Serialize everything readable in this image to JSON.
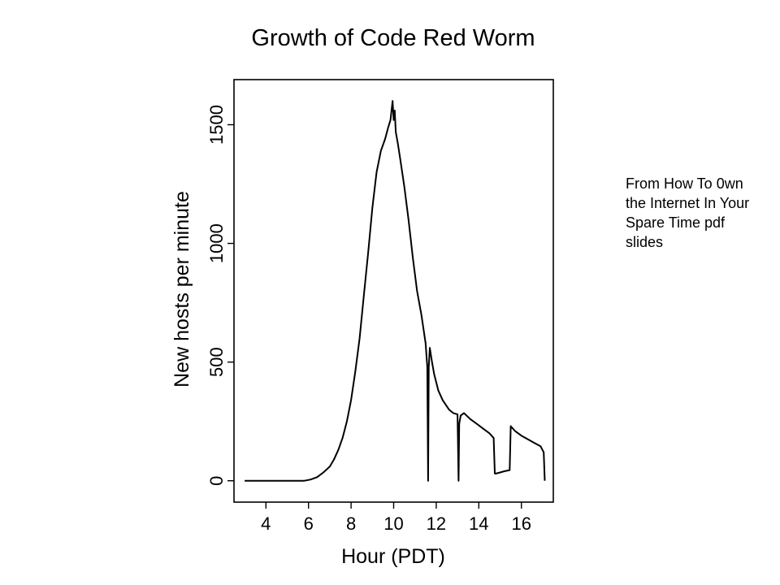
{
  "note": "From How To 0wn the Internet In Your Spare Time pdf slides",
  "chart_data": {
    "type": "line",
    "title": "Growth of Code Red Worm",
    "xlabel": "Hour (PDT)",
    "ylabel": "New hosts per minute",
    "xlim": [
      2.5,
      17.5
    ],
    "ylim": [
      -90,
      1690
    ],
    "xticks": [
      4,
      6,
      8,
      10,
      12,
      14,
      16
    ],
    "yticks": [
      0,
      500,
      1000,
      1500
    ],
    "grid": false,
    "series": [
      {
        "x": [
          3.0,
          5.0,
          5.8,
          6.1,
          6.4,
          6.7,
          7.0,
          7.2,
          7.4,
          7.6,
          7.8,
          8.0,
          8.2,
          8.4,
          8.6,
          8.8,
          9.0,
          9.2,
          9.4,
          9.6,
          9.75,
          9.85,
          9.9,
          9.95,
          10.0,
          10.05,
          10.1,
          10.2,
          10.3,
          10.5,
          10.7,
          10.9,
          11.1,
          11.3,
          11.5,
          11.58,
          11.62,
          11.65,
          11.7,
          11.8,
          11.9,
          12.1,
          12.3,
          12.6,
          12.8,
          13.0,
          13.05,
          13.08,
          13.15,
          13.3,
          13.6,
          13.9,
          14.2,
          14.5,
          14.7,
          14.75,
          14.8,
          15.0,
          15.2,
          15.45,
          15.5,
          15.7,
          16.0,
          16.3,
          16.6,
          16.9,
          17.05,
          17.1
        ],
        "y": [
          0,
          0,
          0,
          5,
          15,
          35,
          60,
          90,
          130,
          180,
          250,
          340,
          460,
          600,
          780,
          960,
          1150,
          1300,
          1390,
          1440,
          1490,
          1520,
          1560,
          1600,
          1520,
          1560,
          1470,
          1420,
          1360,
          1240,
          1100,
          940,
          800,
          700,
          580,
          480,
          0,
          480,
          560,
          500,
          450,
          380,
          340,
          300,
          285,
          280,
          0,
          240,
          275,
          285,
          260,
          240,
          220,
          200,
          180,
          30,
          30,
          35,
          40,
          45,
          230,
          210,
          190,
          175,
          160,
          145,
          120,
          0
        ]
      }
    ]
  }
}
